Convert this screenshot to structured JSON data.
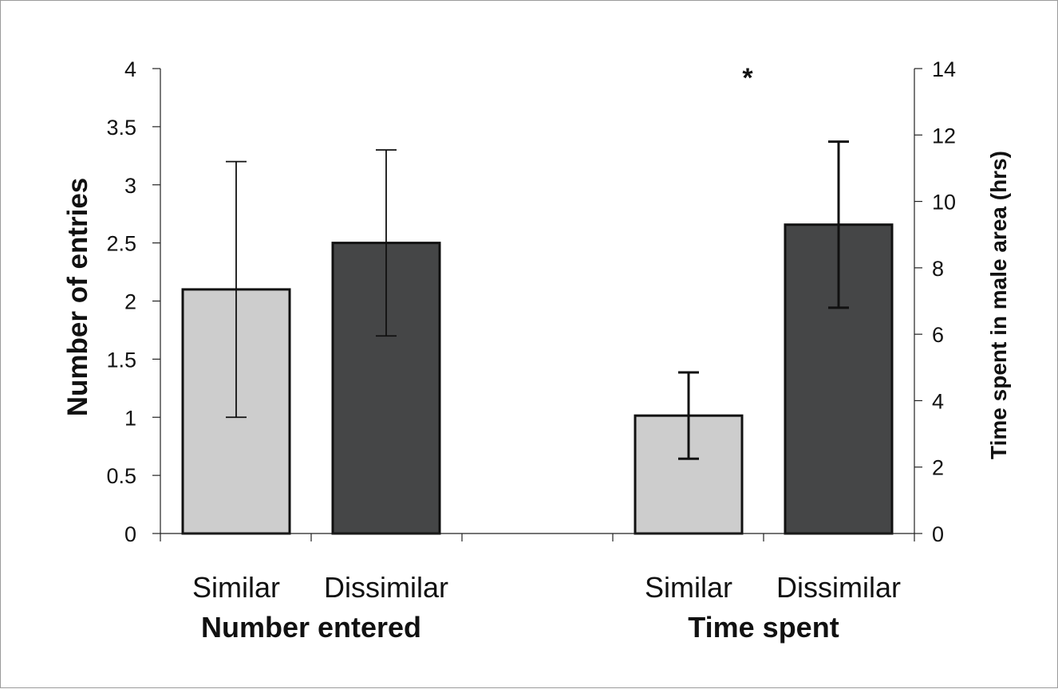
{
  "chart_data": {
    "type": "bar",
    "title": "",
    "groups": [
      {
        "label": "Number entered",
        "axis": "left",
        "bars": [
          {
            "category": "Similar",
            "value": 2.1,
            "err_low": 1.0,
            "err_high": 3.2,
            "color": "#cdcdcd"
          },
          {
            "category": "Dissimilar",
            "value": 2.5,
            "err_low": 1.7,
            "err_high": 3.3,
            "color": "#454647"
          }
        ]
      },
      {
        "label": "Time spent",
        "axis": "right",
        "bars": [
          {
            "category": "Similar",
            "value": 3.55,
            "err_low": 2.25,
            "err_high": 4.85,
            "color": "#cdcdcd"
          },
          {
            "category": "Dissimilar",
            "value": 9.3,
            "err_low": 6.8,
            "err_high": 11.8,
            "color": "#454647"
          }
        ]
      }
    ],
    "y_left": {
      "label": "Number of entries",
      "range": [
        0,
        4
      ],
      "ticks": [
        "0",
        "0.5",
        "1",
        "1.5",
        "2",
        "2.5",
        "3",
        "3.5",
        "4"
      ]
    },
    "y_right": {
      "label": "Time spent in male area (hrs)",
      "range": [
        0,
        14
      ],
      "ticks": [
        "0",
        "2",
        "4",
        "6",
        "8",
        "10",
        "12",
        "14"
      ]
    },
    "annotation": "*",
    "grid": false,
    "legend": "none"
  }
}
